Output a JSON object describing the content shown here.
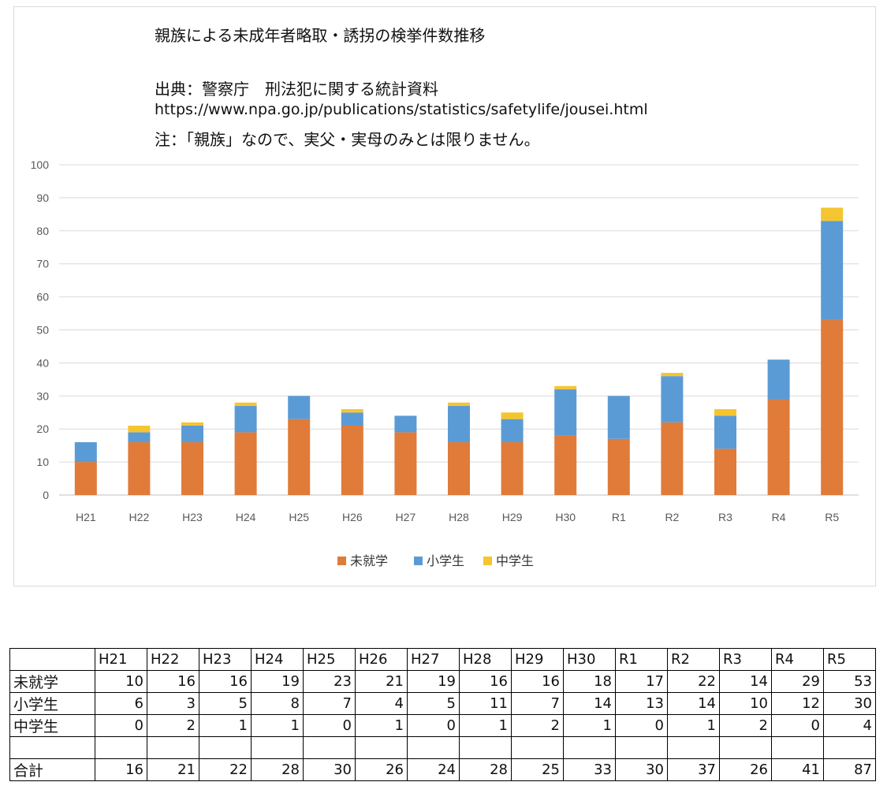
{
  "title": "親族による未成年者略取・誘拐の検挙件数推移",
  "source": "出典：警察庁　刑法犯に関する統計資料",
  "source_url": "https://www.npa.go.jp/publications/statistics/safetylife/jousei.html",
  "note": "注：「親族」なので、実父・実母のみとは限りません。",
  "chart_data": {
    "type": "bar",
    "stacked": true,
    "categories": [
      "H21",
      "H22",
      "H23",
      "H24",
      "H25",
      "H26",
      "H27",
      "H28",
      "H29",
      "H30",
      "R1",
      "R2",
      "R3",
      "R4",
      "R5"
    ],
    "series": [
      {
        "name": "未就学",
        "color": "#e07b39",
        "values": [
          10,
          16,
          16,
          19,
          23,
          21,
          19,
          16,
          16,
          18,
          17,
          22,
          14,
          29,
          53
        ]
      },
      {
        "name": "小学生",
        "color": "#5b9bd5",
        "values": [
          6,
          3,
          5,
          8,
          7,
          4,
          5,
          11,
          7,
          14,
          13,
          14,
          10,
          12,
          30
        ]
      },
      {
        "name": "中学生",
        "color": "#f5c530",
        "values": [
          0,
          2,
          1,
          1,
          0,
          1,
          0,
          1,
          2,
          1,
          0,
          1,
          2,
          0,
          4
        ]
      }
    ],
    "ylim": [
      0,
      100
    ],
    "yticks": [
      0,
      10,
      20,
      30,
      40,
      50,
      60,
      70,
      80,
      90,
      100
    ],
    "grid": true,
    "legend": "bottom"
  },
  "table": {
    "row_labels": [
      "未就学",
      "小学生",
      "中学生",
      "",
      "合計"
    ],
    "totals": [
      16,
      21,
      22,
      28,
      30,
      26,
      24,
      28,
      25,
      33,
      30,
      37,
      26,
      41,
      87
    ]
  }
}
